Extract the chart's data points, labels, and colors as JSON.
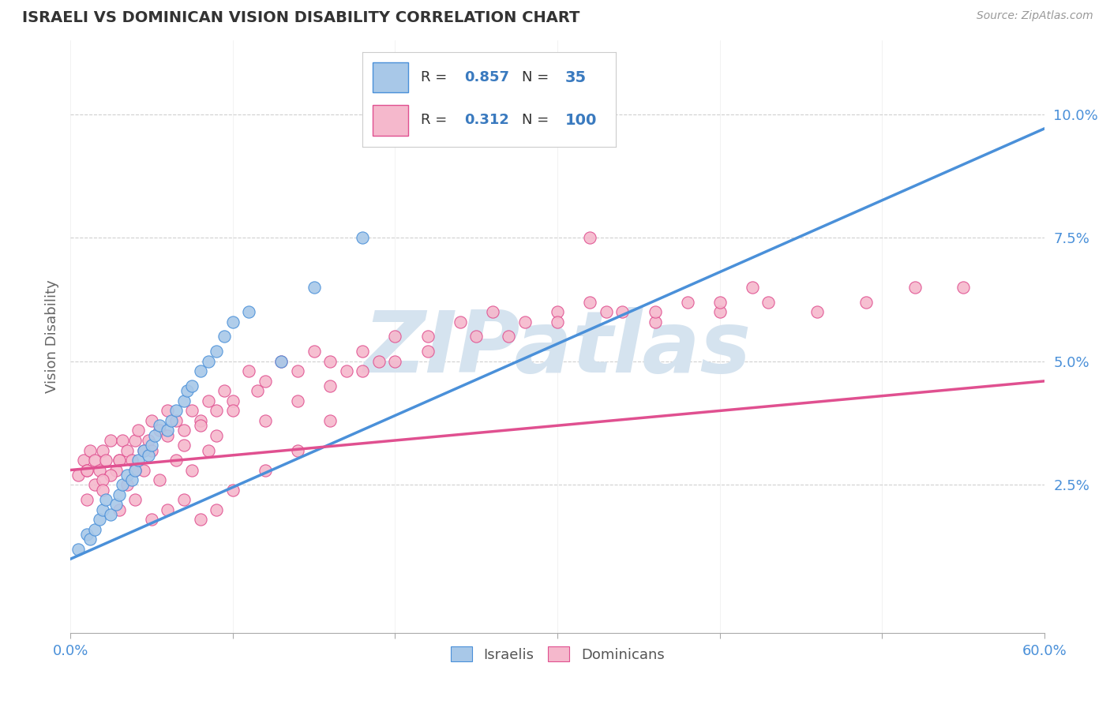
{
  "title": "ISRAELI VS DOMINICAN VISION DISABILITY CORRELATION CHART",
  "source_text": "Source: ZipAtlas.com",
  "ylabel": "Vision Disability",
  "xlim": [
    0.0,
    0.6
  ],
  "ylim": [
    -0.005,
    0.115
  ],
  "yticks": [
    0.025,
    0.05,
    0.075,
    0.1
  ],
  "ytick_labels": [
    "2.5%",
    "5.0%",
    "7.5%",
    "10.0%"
  ],
  "xticks": [
    0.0,
    0.1,
    0.2,
    0.3,
    0.4,
    0.5,
    0.6
  ],
  "xtick_labels": [
    "0.0%",
    "",
    "",
    "",
    "",
    "",
    "60.0%"
  ],
  "israeli_color": "#a8c8e8",
  "dominican_color": "#f5b8cc",
  "trend_israeli_color": "#4a90d9",
  "trend_dominican_color": "#e05090",
  "R_israeli": 0.857,
  "N_israeli": 35,
  "R_dominican": 0.312,
  "N_dominican": 100,
  "legend_color": "#3a7abf",
  "N_color": "#3a7abf",
  "watermark": "ZIPatlas",
  "watermark_color": "#d5e3ef",
  "grid_color": "#d0d0d0",
  "tick_color": "#4a90d9",
  "israeli_points_x": [
    0.005,
    0.01,
    0.012,
    0.015,
    0.018,
    0.02,
    0.022,
    0.025,
    0.028,
    0.03,
    0.032,
    0.035,
    0.038,
    0.04,
    0.042,
    0.045,
    0.048,
    0.05,
    0.052,
    0.055,
    0.06,
    0.062,
    0.065,
    0.07,
    0.072,
    0.075,
    0.08,
    0.085,
    0.09,
    0.095,
    0.1,
    0.11,
    0.13,
    0.15,
    0.18
  ],
  "israeli_points_y": [
    0.012,
    0.015,
    0.014,
    0.016,
    0.018,
    0.02,
    0.022,
    0.019,
    0.021,
    0.023,
    0.025,
    0.027,
    0.026,
    0.028,
    0.03,
    0.032,
    0.031,
    0.033,
    0.035,
    0.037,
    0.036,
    0.038,
    0.04,
    0.042,
    0.044,
    0.045,
    0.048,
    0.05,
    0.052,
    0.055,
    0.058,
    0.06,
    0.05,
    0.065,
    0.075
  ],
  "dominican_points_x": [
    0.005,
    0.008,
    0.01,
    0.012,
    0.015,
    0.018,
    0.02,
    0.022,
    0.025,
    0.028,
    0.03,
    0.032,
    0.035,
    0.038,
    0.04,
    0.042,
    0.045,
    0.048,
    0.05,
    0.055,
    0.06,
    0.065,
    0.07,
    0.075,
    0.08,
    0.085,
    0.09,
    0.095,
    0.1,
    0.11,
    0.115,
    0.12,
    0.13,
    0.14,
    0.15,
    0.16,
    0.17,
    0.18,
    0.19,
    0.2,
    0.22,
    0.24,
    0.26,
    0.28,
    0.3,
    0.32,
    0.34,
    0.36,
    0.38,
    0.4,
    0.015,
    0.025,
    0.035,
    0.045,
    0.055,
    0.065,
    0.075,
    0.085,
    0.01,
    0.02,
    0.03,
    0.04,
    0.05,
    0.06,
    0.07,
    0.08,
    0.09,
    0.1,
    0.12,
    0.14,
    0.16,
    0.18,
    0.2,
    0.22,
    0.25,
    0.27,
    0.3,
    0.33,
    0.36,
    0.4,
    0.43,
    0.46,
    0.49,
    0.52,
    0.55,
    0.01,
    0.02,
    0.03,
    0.04,
    0.05,
    0.06,
    0.07,
    0.08,
    0.09,
    0.1,
    0.12,
    0.14,
    0.16,
    0.32,
    0.42
  ],
  "dominican_points_y": [
    0.027,
    0.03,
    0.028,
    0.032,
    0.03,
    0.028,
    0.032,
    0.03,
    0.034,
    0.028,
    0.03,
    0.034,
    0.032,
    0.03,
    0.034,
    0.036,
    0.032,
    0.034,
    0.038,
    0.036,
    0.04,
    0.038,
    0.036,
    0.04,
    0.038,
    0.042,
    0.04,
    0.044,
    0.042,
    0.048,
    0.044,
    0.046,
    0.05,
    0.048,
    0.052,
    0.05,
    0.048,
    0.052,
    0.05,
    0.055,
    0.055,
    0.058,
    0.06,
    0.058,
    0.06,
    0.062,
    0.06,
    0.058,
    0.062,
    0.06,
    0.025,
    0.027,
    0.025,
    0.028,
    0.026,
    0.03,
    0.028,
    0.032,
    0.028,
    0.026,
    0.03,
    0.028,
    0.032,
    0.035,
    0.033,
    0.037,
    0.035,
    0.04,
    0.038,
    0.042,
    0.045,
    0.048,
    0.05,
    0.052,
    0.055,
    0.055,
    0.058,
    0.06,
    0.06,
    0.062,
    0.062,
    0.06,
    0.062,
    0.065,
    0.065,
    0.022,
    0.024,
    0.02,
    0.022,
    0.018,
    0.02,
    0.022,
    0.018,
    0.02,
    0.024,
    0.028,
    0.032,
    0.038,
    0.075,
    0.065
  ]
}
